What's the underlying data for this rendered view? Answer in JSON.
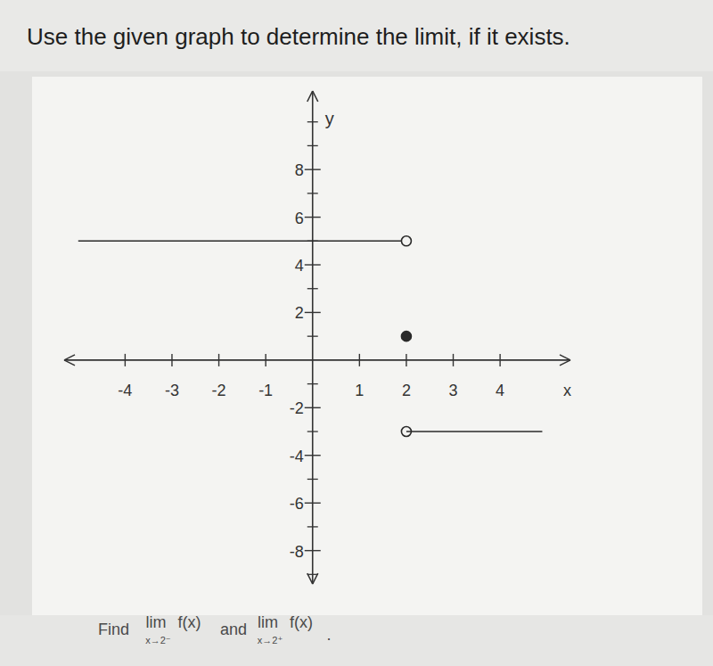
{
  "chart_data": {
    "type": "line",
    "title": "Use the given graph to determine the limit, if it exists.",
    "x_label": "x",
    "y_label": "y",
    "xlim": [
      -5.3,
      5.5
    ],
    "ylim": [
      -9.4,
      11.3
    ],
    "xticks": [
      -4,
      -3,
      -2,
      -1,
      1,
      2,
      3,
      4
    ],
    "yticks": [
      -8,
      -6,
      -4,
      -2,
      2,
      4,
      6,
      8
    ],
    "grid": false,
    "series": [
      {
        "type": "line",
        "x": [
          -5,
          2
        ],
        "values": [
          5,
          5
        ],
        "color": "#2a2a2a"
      },
      {
        "type": "scatter",
        "x": [
          2
        ],
        "values": [
          5
        ],
        "color": "#2a2a2a",
        "marker": "open"
      },
      {
        "type": "scatter",
        "x": [
          2
        ],
        "values": [
          1
        ],
        "color": "#2a2a2a",
        "marker": "filled"
      },
      {
        "type": "scatter",
        "x": [
          2
        ],
        "values": [
          -3
        ],
        "color": "#2a2a2a",
        "marker": "open"
      },
      {
        "type": "line",
        "x": [
          2,
          4.9
        ],
        "values": [
          -3,
          -3
        ],
        "color": "#2a2a2a"
      }
    ],
    "question": {
      "lead": "Find",
      "parts": [
        {
          "lim": "lim",
          "func": "f(x)",
          "sub": "x→2⁻"
        },
        {
          "lim": "lim",
          "func": "f(x)",
          "sub": "x→2⁺"
        }
      ],
      "join": "and",
      "end": "."
    }
  }
}
